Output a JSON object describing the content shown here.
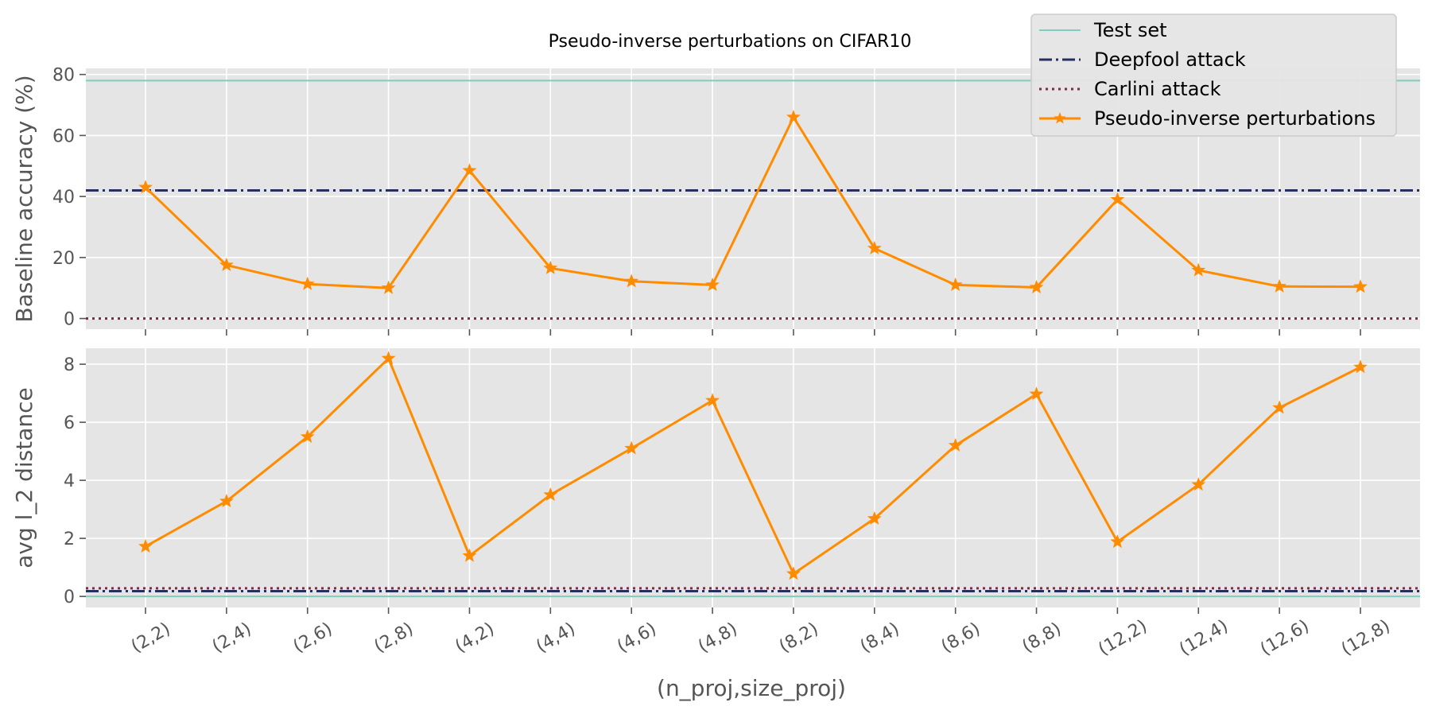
{
  "chart_data": {
    "type": "line",
    "title": "Pseudo-inverse perturbations on CIFAR10",
    "xlabel": "(n_proj,size_proj)",
    "categories": [
      "(2,2)",
      "(2,4)",
      "(2,6)",
      "(2,8)",
      "(4,2)",
      "(4,4)",
      "(4,6)",
      "(4,8)",
      "(8,2)",
      "(8,4)",
      "(8,6)",
      "(8,8)",
      "(12,2)",
      "(12,4)",
      "(12,6)",
      "(12,8)"
    ],
    "legend": {
      "placement": "top-right",
      "entries": [
        {
          "label": "Test set",
          "color": "#7fcdbb",
          "style": "solid"
        },
        {
          "label": "Deepfool attack",
          "color": "#253060",
          "style": "dashdot"
        },
        {
          "label": "Carlini attack",
          "color": "#7b2d45",
          "style": "dotted"
        },
        {
          "label": "Pseudo-inverse perturbations",
          "color": "#ff8c00",
          "style": "solid-star"
        }
      ]
    },
    "panels": [
      {
        "ylabel": "Baseline accuracy (%)",
        "ylim": [
          -3.5,
          82
        ],
        "yticks": [
          0,
          20,
          40,
          60,
          80
        ],
        "grid": true,
        "reference_lines": [
          {
            "name": "Test set",
            "value": 78
          },
          {
            "name": "Deepfool attack",
            "value": 42
          },
          {
            "name": "Carlini attack",
            "value": 0
          }
        ],
        "series": [
          {
            "name": "Pseudo-inverse perturbations",
            "values": [
              43,
              17.5,
              11.3,
              10,
              48.5,
              16.5,
              12.2,
              11,
              66,
              23,
              11,
              10.2,
              39,
              15.8,
              10.5,
              10.4
            ]
          }
        ]
      },
      {
        "ylabel": "avg l_2 distance",
        "ylim": [
          -0.38,
          8.55
        ],
        "yticks": [
          0,
          2,
          4,
          6,
          8
        ],
        "grid": true,
        "reference_lines": [
          {
            "name": "Test set",
            "value": 0
          },
          {
            "name": "Deepfool attack",
            "value": 0.18
          },
          {
            "name": "Carlini attack",
            "value": 0.28
          }
        ],
        "series": [
          {
            "name": "Pseudo-inverse perturbations",
            "values": [
              1.72,
              3.28,
              5.5,
              8.2,
              1.4,
              3.5,
              5.1,
              6.75,
              0.78,
              2.68,
              5.2,
              6.97,
              1.88,
              3.85,
              6.5,
              7.9
            ]
          }
        ]
      }
    ],
    "colors": {
      "panel_bg": "#e5e5e5",
      "grid": "#ffffff",
      "legend_bg": "#e5e5e5",
      "legend_border": "#cccccc"
    }
  }
}
